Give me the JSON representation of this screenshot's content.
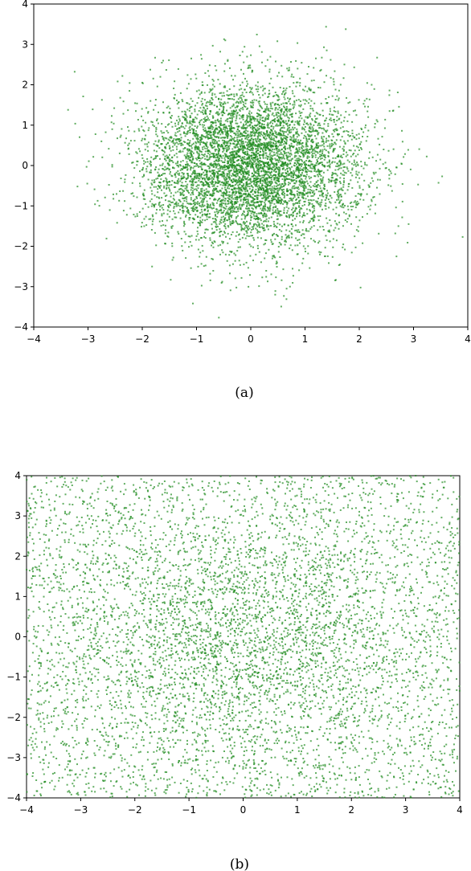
{
  "chart_data": [
    {
      "type": "scatter",
      "caption": "(a)",
      "xlim": [
        -4,
        4
      ],
      "ylim": [
        -4,
        4
      ],
      "xticks": [
        "−4",
        "−3",
        "−2",
        "−1",
        "0",
        "1",
        "2",
        "3",
        "4"
      ],
      "yticks": [
        "−4",
        "−3",
        "−2",
        "−1",
        "0",
        "1",
        "2",
        "3",
        "4"
      ],
      "grid": false,
      "color": "#1f8b1f",
      "distribution": "approximately standard normal, concentrated around (0, 0)",
      "points": 6000
    },
    {
      "type": "scatter",
      "caption": "(b)",
      "xlim": [
        -4,
        4
      ],
      "ylim": [
        -4,
        4
      ],
      "xticks": [
        "−4",
        "−3",
        "−2",
        "−1",
        "0",
        "1",
        "2",
        "3",
        "4"
      ],
      "yticks": [
        "−4",
        "−3",
        "−2",
        "−1",
        "0",
        "1",
        "2",
        "3",
        "4"
      ],
      "grid": false,
      "color": "#1f8b1f",
      "distribution": "broad, nearly uniform spread filling [-4, 4] x [-4, 4], slightly denser near center",
      "points": 6000
    }
  ]
}
